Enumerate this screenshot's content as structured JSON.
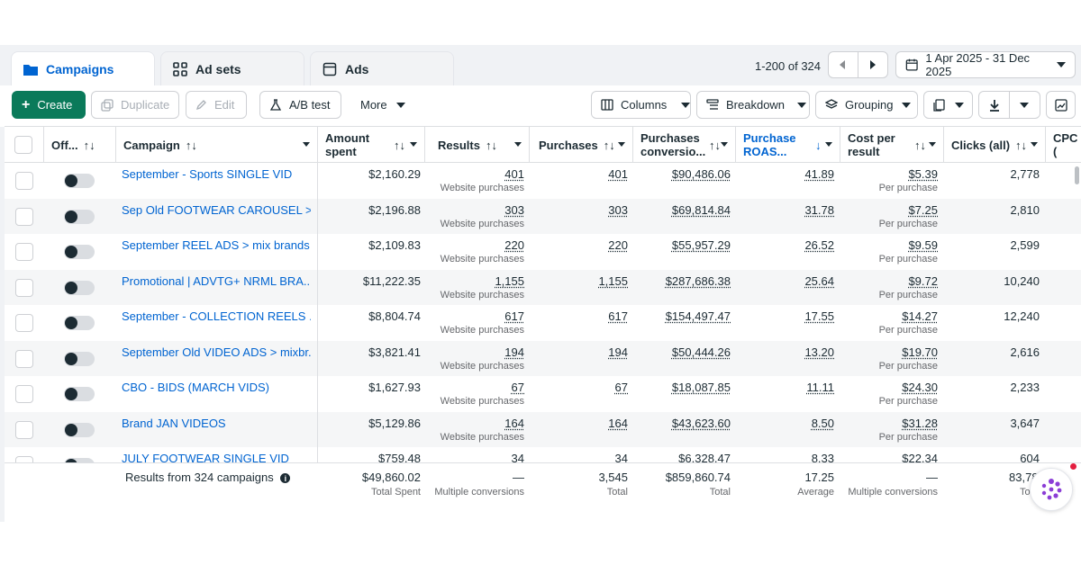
{
  "tabs": [
    {
      "label": "Campaigns",
      "icon": "folder-icon",
      "active": true
    },
    {
      "label": "Ad sets",
      "icon": "grid-icon",
      "active": false
    },
    {
      "label": "Ads",
      "icon": "ad-icon",
      "active": false
    }
  ],
  "pagination": {
    "range_text": "1-200 of 324"
  },
  "date_range": {
    "label": "1 Apr 2025 - 31 Dec 2025"
  },
  "toolbar": {
    "create": "Create",
    "duplicate": "Duplicate",
    "edit": "Edit",
    "ab_test": "A/B test",
    "more": "More",
    "columns": "Columns",
    "breakdown": "Breakdown",
    "grouping": "Grouping"
  },
  "columns": {
    "off": "Off...",
    "campaign": "Campaign",
    "amount_spent_1": "Amount",
    "amount_spent_2": "spent",
    "results": "Results",
    "purchases": "Purchases",
    "purchases_conv_1": "Purchases",
    "purchases_conv_2": "conversio...",
    "roas_1": "Purchase",
    "roas_2": "ROAS...",
    "cpr_1": "Cost per",
    "cpr_2": "result",
    "clicks": "Clicks (all)",
    "cpc": "CPC ("
  },
  "rows": [
    {
      "name": "September - Sports SINGLE VID",
      "spent": "$2,160.29",
      "results": "401",
      "results_sub": "Website purchases",
      "purchases": "401",
      "conv": "$90,486.06",
      "roas": "41.89",
      "cpr": "$5.39",
      "cpr_sub": "Per purchase",
      "clicks": "2,778"
    },
    {
      "name": "Sep Old FOOTWEAR CAROUSEL > ...",
      "spent": "$2,196.88",
      "results": "303",
      "results_sub": "Website purchases",
      "purchases": "303",
      "conv": "$69,814.84",
      "roas": "31.78",
      "cpr": "$7.25",
      "cpr_sub": "Per purchase",
      "clicks": "2,810"
    },
    {
      "name": "September REEL ADS > mix brands",
      "spent": "$2,109.83",
      "results": "220",
      "results_sub": "Website purchases",
      "purchases": "220",
      "conv": "$55,957.29",
      "roas": "26.52",
      "cpr": "$9.59",
      "cpr_sub": "Per purchase",
      "clicks": "2,599"
    },
    {
      "name": "Promotional | ADVTG+ NRML BRA...",
      "spent": "$11,222.35",
      "results": "1,155",
      "results_sub": "Website purchases",
      "purchases": "1,155",
      "conv": "$287,686.38",
      "roas": "25.64",
      "cpr": "$9.72",
      "cpr_sub": "Per purchase",
      "clicks": "10,240"
    },
    {
      "name": "September - COLLECTION REELS ...",
      "spent": "$8,804.74",
      "results": "617",
      "results_sub": "Website purchases",
      "purchases": "617",
      "conv": "$154,497.47",
      "roas": "17.55",
      "cpr": "$14.27",
      "cpr_sub": "Per purchase",
      "clicks": "12,240"
    },
    {
      "name": "September Old VIDEO ADS > mixbr...",
      "spent": "$3,821.41",
      "results": "194",
      "results_sub": "Website purchases",
      "purchases": "194",
      "conv": "$50,444.26",
      "roas": "13.20",
      "cpr": "$19.70",
      "cpr_sub": "Per purchase",
      "clicks": "2,616"
    },
    {
      "name": "CBO - BIDS (MARCH VIDS)",
      "spent": "$1,627.93",
      "results": "67",
      "results_sub": "Website purchases",
      "purchases": "67",
      "conv": "$18,087.85",
      "roas": "11.11",
      "cpr": "$24.30",
      "cpr_sub": "Per purchase",
      "clicks": "2,233"
    },
    {
      "name": "Brand JAN VIDEOS",
      "spent": "$5,129.86",
      "results": "164",
      "results_sub": "Website purchases",
      "purchases": "164",
      "conv": "$43,623.60",
      "roas": "8.50",
      "cpr": "$31.28",
      "cpr_sub": "Per purchase",
      "clicks": "3,647"
    },
    {
      "name": "JULY FOOTWEAR SINGLE VID",
      "spent": "$759.48",
      "results": "34",
      "results_sub": "",
      "purchases": "34",
      "conv": "$6,328.47",
      "roas": "8.33",
      "cpr": "$22.34",
      "cpr_sub": "",
      "clicks": "604"
    }
  ],
  "totals": {
    "label": "Results from 324 campaigns",
    "spent": "$49,860.02",
    "spent_sub": "Total Spent",
    "results": "—",
    "results_sub": "Multiple conversions",
    "purchases": "3,545",
    "purchases_sub": "Total",
    "conv": "$859,860.74",
    "conv_sub": "Total",
    "roas": "17.25",
    "roas_sub": "Average",
    "cpr": "—",
    "cpr_sub": "Multiple conversions",
    "clicks": "83,78",
    "clicks_sub": "To"
  },
  "colors": {
    "primary": "#0a7a5a",
    "link": "#0064d1"
  }
}
